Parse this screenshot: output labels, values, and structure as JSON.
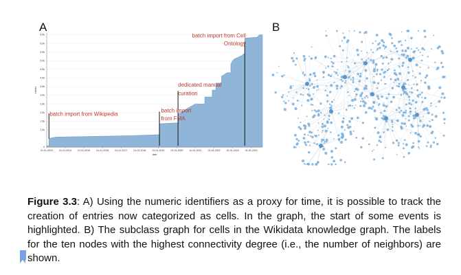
{
  "figure": {
    "panel_a_label": "A",
    "panel_b_label": "B",
    "caption_prefix": "Figure 3.3",
    "caption_text": ": A) Using the numeric identifiers as a proxy for time, it is possible to track the creation of entries now categorized as cells. In the graph, the start of some events is highlighted. B) The subclass graph for cells in the Wikidata knowledge graph. The labels for the ten nodes with the highest connectivity degree (i.e., the number of neighbors) are shown."
  },
  "chart_data": {
    "type": "area",
    "title": "",
    "xlabel": "date",
    "ylabel": "entries",
    "x_ticks": [
      "01-01-2013",
      "01-01-2014",
      "01-01-2015",
      "01-01-2016",
      "01-01-2017",
      "01-01-2018",
      "01-01-2019",
      "01-01-2020",
      "01-01-2021",
      "01-01-2022",
      "01-01-2023",
      "01-01-2024"
    ],
    "y_ticks": [
      "0",
      "1.0k",
      "1.5k",
      "2.0k",
      "2.5k",
      "3.0k",
      "3.5k",
      "4.0k",
      "4.5k",
      "5.0k",
      "5.5k",
      "6.0k",
      "6.5k"
    ],
    "xlim": [
      2013.0,
      2024.6
    ],
    "ylim": [
      0,
      6600
    ],
    "x": [
      2013.0,
      2013.12,
      2013.5,
      2014.5,
      2015.5,
      2016.5,
      2017.5,
      2018.5,
      2019.0,
      2019.06,
      2020.0,
      2020.06,
      2020.5,
      2021.0,
      2021.5,
      2021.9,
      2022.1,
      2022.4,
      2022.7,
      2022.9,
      2023.0,
      2023.1,
      2023.3,
      2023.5,
      2023.6,
      2023.65,
      2024.0,
      2024.3,
      2024.45
    ],
    "y": [
      80,
      500,
      580,
      600,
      620,
      640,
      660,
      700,
      720,
      1350,
      1400,
      1900,
      2200,
      2500,
      2900,
      3300,
      3700,
      4100,
      4300,
      4800,
      5000,
      5100,
      5200,
      5300,
      5400,
      6300,
      6330,
      6350,
      6500
    ],
    "color": "#8fb5d8",
    "annotations": [
      {
        "x": 2013.05,
        "y": 1800,
        "text": "batch import from Wikipedia"
      },
      {
        "x": 2019.04,
        "y": 2000,
        "text": "batch import"
      },
      {
        "x": 2019.04,
        "y": 1550,
        "text": "from FMA"
      },
      {
        "x": 2019.95,
        "y": 3500,
        "text": "dedicated manual"
      },
      {
        "x": 2019.95,
        "y": 3000,
        "text": "curation"
      },
      {
        "x": 2023.6,
        "y": 6350,
        "text": "batch import from Cell"
      },
      {
        "x": 2023.6,
        "y": 5880,
        "text": "Ontology"
      }
    ],
    "event_lines": [
      2013.12,
      2019.06,
      2020.06,
      2023.65
    ]
  },
  "graph_b": {
    "node_color": "#7aaedb",
    "edge_color": "#c9d6e3"
  }
}
